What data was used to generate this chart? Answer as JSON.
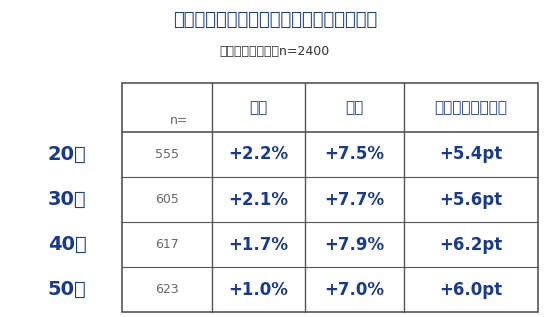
{
  "title": "【年代別の平均賃上げ率・希望賃上げ率】",
  "subtitle": "全体／単一回答／n=2400",
  "title_color": "#1a3a8c",
  "subtitle_color": "#333333",
  "col_headers": [
    "実際",
    "希望",
    "希望と実態の差分"
  ],
  "n_label": "n=",
  "rows": [
    {
      "age": "20代",
      "n": "555",
      "actual": "+2.2%",
      "hope": "+7.5%",
      "diff": "+5.4pt"
    },
    {
      "age": "30代",
      "n": "605",
      "actual": "+2.1%",
      "hope": "+7.7%",
      "diff": "+5.6pt"
    },
    {
      "age": "40代",
      "n": "617",
      "actual": "+1.7%",
      "hope": "+7.9%",
      "diff": "+6.2pt"
    },
    {
      "age": "50代",
      "n": "623",
      "actual": "+1.0%",
      "hope": "+7.0%",
      "diff": "+6.0pt"
    }
  ],
  "bg_color": "#ffffff",
  "border_color": "#555555",
  "age_col_color": "#1a3a8c",
  "n_col_color": "#666666",
  "data_col_color": "#1a3a8c",
  "header_col_color": "#1a3a8c",
  "title_fontsize": 13,
  "subtitle_fontsize": 9,
  "header_fontsize": 11,
  "age_fontsize": 14,
  "n_fontsize": 9,
  "data_fontsize": 12
}
